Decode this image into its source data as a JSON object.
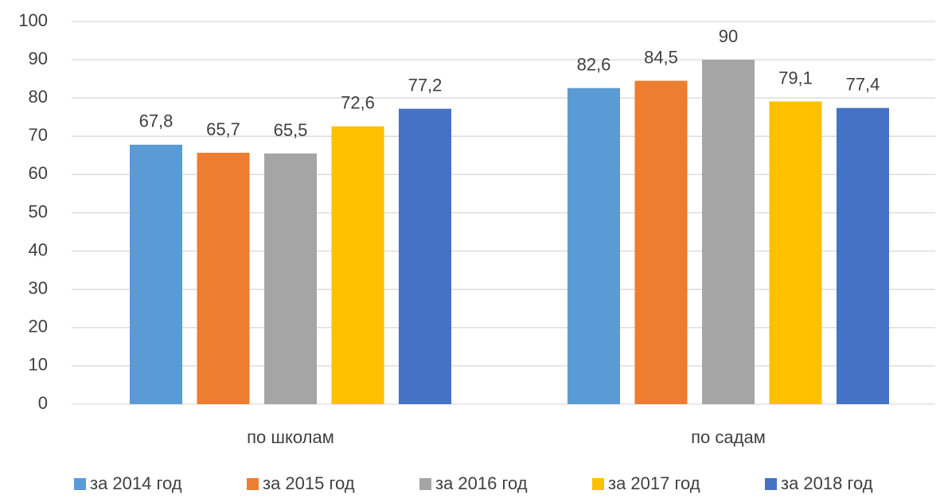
{
  "chart_data": {
    "type": "bar",
    "categories": [
      "по школам",
      "по садам"
    ],
    "series": [
      {
        "name": "за 2014 год",
        "color": "#5b9bd5",
        "values": [
          67.8,
          82.6
        ],
        "value_labels": [
          "67,8",
          "82,6"
        ]
      },
      {
        "name": "за 2015 год",
        "color": "#ed7d31",
        "values": [
          65.7,
          84.5
        ],
        "value_labels": [
          "65,7",
          "84,5"
        ]
      },
      {
        "name": "за 2016 год",
        "color": "#a5a5a5",
        "values": [
          65.5,
          90
        ],
        "value_labels": [
          "65,5",
          "90"
        ]
      },
      {
        "name": "за 2017 год",
        "color": "#ffc000",
        "values": [
          72.6,
          79.1
        ],
        "value_labels": [
          "72,6",
          "79,1"
        ]
      },
      {
        "name": "за 2018 год",
        "color": "#4472c4",
        "values": [
          77.2,
          77.4
        ],
        "value_labels": [
          "77,2",
          "77,4"
        ]
      }
    ],
    "ylim": [
      0,
      100
    ],
    "yticks": [
      0,
      10,
      20,
      30,
      40,
      50,
      60,
      70,
      80,
      90,
      100
    ],
    "grid": true,
    "legend": "bottom"
  }
}
